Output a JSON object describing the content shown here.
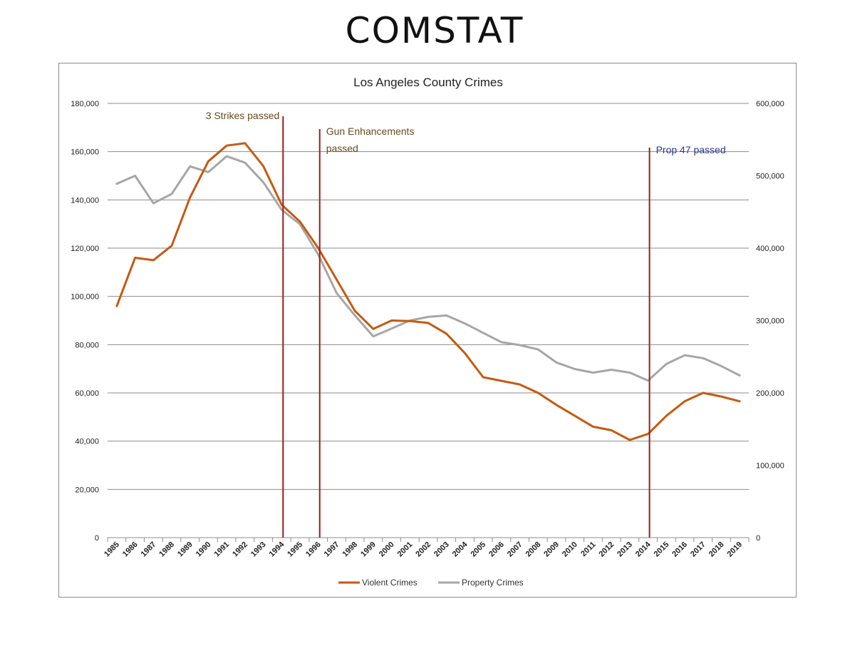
{
  "page": {
    "title": "COMSTAT"
  },
  "chart_data": {
    "type": "line",
    "title": "Los Angeles County Crimes",
    "x": [
      "1985",
      "1986",
      "1987",
      "1988",
      "1989",
      "1990",
      "1991",
      "1992",
      "1993",
      "1994",
      "1995",
      "1996",
      "1997",
      "1998",
      "1999",
      "2000",
      "2001",
      "2002",
      "2003",
      "2004",
      "2005",
      "2006",
      "2007",
      "2008",
      "2009",
      "2010",
      "2011",
      "2012",
      "2013",
      "2014",
      "2015",
      "2016",
      "2017",
      "2018",
      "2019"
    ],
    "y_left": {
      "min": 0,
      "max": 180000,
      "ticks": [
        "0",
        "20,000",
        "40,000",
        "60,000",
        "80,000",
        "100,000",
        "120,000",
        "140,000",
        "160,000",
        "180,000"
      ]
    },
    "y_right": {
      "min": 0,
      "max": 600000,
      "ticks": [
        "0",
        "100,000",
        "200,000",
        "300,000",
        "400,000",
        "500,000",
        "600,000"
      ]
    },
    "grid": true,
    "legend": "bottom",
    "series": [
      {
        "name": "Violent Crimes",
        "axis": "left",
        "color": "#c55a11",
        "values": [
          96000,
          116000,
          115000,
          121000,
          141000,
          156000,
          162500,
          163500,
          154000,
          138000,
          131000,
          120000,
          107000,
          94000,
          86500,
          90000,
          89800,
          89000,
          84500,
          76500,
          66500,
          65000,
          63500,
          60000,
          55000,
          50500,
          46000,
          44500,
          40500,
          43000,
          50500,
          56500,
          60000,
          58500,
          56500
        ]
      },
      {
        "name": "Property Crimes",
        "axis": "right",
        "color": "#a6a6a6",
        "values": [
          489000,
          500000,
          462000,
          475000,
          513000,
          505000,
          527000,
          518000,
          491000,
          453000,
          433000,
          391000,
          338000,
          307000,
          278000,
          289000,
          300000,
          305000,
          307000,
          296000,
          283000,
          270000,
          266000,
          260000,
          242000,
          233000,
          228000,
          232000,
          228000,
          217000,
          240000,
          252000,
          248000,
          237000,
          224000
        ]
      }
    ],
    "annotations": [
      {
        "label": "3 Strikes passed",
        "x_value": 1994,
        "color": "#6b4a1e"
      },
      {
        "label": "Gun Enhancements",
        "label2": "passed",
        "x_value": 1996,
        "color": "#6b4a1e"
      },
      {
        "label": "Prop 47 passed",
        "x_value": 2014,
        "color": "#2a3a8c"
      }
    ],
    "marker_line_color": "#9e1b1b"
  }
}
